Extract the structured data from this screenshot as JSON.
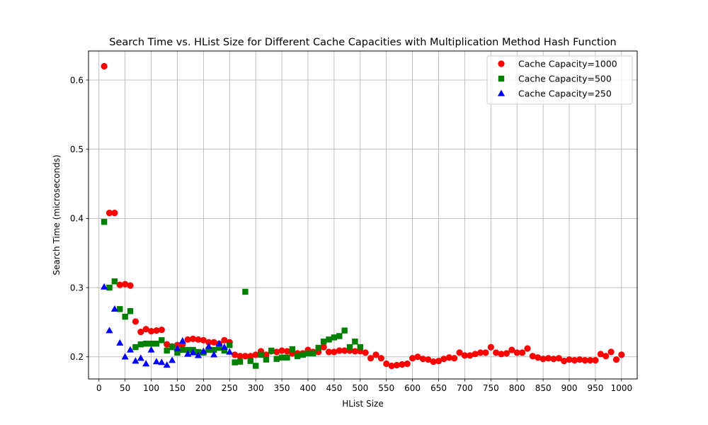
{
  "chart_data": {
    "type": "scatter",
    "title": "Search Time vs. HList Size for Different Cache Capacities with Multiplication Method Hash Function",
    "xlabel": "HList Size",
    "ylabel": "Search Time (microseconds)",
    "xlim": [
      -20,
      1030
    ],
    "ylim": [
      0.168,
      0.642
    ],
    "xticks": [
      0,
      50,
      100,
      150,
      200,
      250,
      300,
      350,
      400,
      450,
      500,
      550,
      600,
      650,
      700,
      750,
      800,
      850,
      900,
      950,
      1000
    ],
    "yticks": [
      0.2,
      0.3,
      0.4,
      0.5,
      0.6
    ],
    "grid": true,
    "legend_position": "top-right",
    "series": [
      {
        "name": "Cache Capacity=1000",
        "color": "#ff0000",
        "marker": "circle",
        "x": [
          10,
          20,
          30,
          40,
          50,
          60,
          70,
          80,
          90,
          100,
          110,
          120,
          130,
          140,
          150,
          160,
          170,
          180,
          190,
          200,
          210,
          220,
          230,
          240,
          250,
          260,
          270,
          280,
          290,
          300,
          310,
          320,
          330,
          340,
          350,
          360,
          370,
          380,
          390,
          400,
          410,
          420,
          430,
          440,
          450,
          460,
          470,
          480,
          490,
          500,
          510,
          520,
          530,
          540,
          550,
          560,
          570,
          580,
          590,
          600,
          610,
          620,
          630,
          640,
          650,
          660,
          670,
          680,
          690,
          700,
          710,
          720,
          730,
          740,
          750,
          760,
          770,
          780,
          790,
          800,
          810,
          820,
          830,
          840,
          850,
          860,
          870,
          880,
          890,
          900,
          910,
          920,
          930,
          940,
          950,
          960,
          970,
          980,
          990,
          1000
        ],
        "y": [
          0.62,
          0.408,
          0.408,
          0.304,
          0.305,
          0.303,
          0.251,
          0.236,
          0.24,
          0.237,
          0.238,
          0.239,
          0.218,
          0.215,
          0.217,
          0.218,
          0.225,
          0.226,
          0.225,
          0.224,
          0.221,
          0.221,
          0.219,
          0.224,
          0.221,
          0.203,
          0.201,
          0.201,
          0.201,
          0.203,
          0.208,
          0.203,
          0.208,
          0.207,
          0.209,
          0.208,
          0.205,
          0.205,
          0.205,
          0.21,
          0.207,
          0.207,
          0.214,
          0.207,
          0.207,
          0.209,
          0.209,
          0.209,
          0.208,
          0.208,
          0.206,
          0.198,
          0.203,
          0.198,
          0.19,
          0.187,
          0.188,
          0.189,
          0.19,
          0.198,
          0.2,
          0.197,
          0.196,
          0.193,
          0.194,
          0.197,
          0.199,
          0.198,
          0.206,
          0.202,
          0.202,
          0.204,
          0.206,
          0.206,
          0.214,
          0.206,
          0.204,
          0.205,
          0.21,
          0.206,
          0.206,
          0.212,
          0.201,
          0.199,
          0.197,
          0.198,
          0.197,
          0.198,
          0.194,
          0.196,
          0.195,
          0.196,
          0.195,
          0.195,
          0.195,
          0.204,
          0.201,
          0.207,
          0.196,
          0.203
        ]
      },
      {
        "name": "Cache Capacity=500",
        "color": "#008000",
        "marker": "square",
        "x": [
          10,
          20,
          30,
          40,
          50,
          60,
          70,
          80,
          90,
          100,
          110,
          120,
          130,
          140,
          150,
          160,
          170,
          180,
          190,
          200,
          210,
          220,
          230,
          240,
          250,
          260,
          270,
          280,
          290,
          300,
          310,
          320,
          330,
          340,
          350,
          360,
          370,
          380,
          390,
          400,
          410,
          420,
          430,
          440,
          450,
          460,
          470,
          480,
          490,
          500
        ],
        "y": [
          0.395,
          0.3,
          0.309,
          0.269,
          0.258,
          0.266,
          0.214,
          0.218,
          0.219,
          0.219,
          0.219,
          0.224,
          0.209,
          0.214,
          0.206,
          0.21,
          0.21,
          0.21,
          0.207,
          0.206,
          0.21,
          0.21,
          0.213,
          0.209,
          0.217,
          0.192,
          0.193,
          0.294,
          0.194,
          0.187,
          0.203,
          0.196,
          0.209,
          0.197,
          0.199,
          0.199,
          0.211,
          0.201,
          0.203,
          0.205,
          0.205,
          0.213,
          0.222,
          0.225,
          0.228,
          0.23,
          0.238,
          0.214,
          0.222,
          0.214
        ]
      },
      {
        "name": "Cache Capacity=250",
        "color": "#0000ff",
        "marker": "triangle",
        "x": [
          10,
          20,
          30,
          40,
          50,
          60,
          70,
          80,
          90,
          100,
          110,
          120,
          130,
          140,
          150,
          160,
          170,
          180,
          190,
          200,
          210,
          220,
          230,
          240,
          250
        ],
        "y": [
          0.301,
          0.238,
          0.269,
          0.22,
          0.2,
          0.21,
          0.194,
          0.198,
          0.19,
          0.21,
          0.193,
          0.192,
          0.188,
          0.195,
          0.212,
          0.223,
          0.204,
          0.206,
          0.202,
          0.208,
          0.215,
          0.203,
          0.219,
          0.214,
          0.207
        ]
      }
    ]
  }
}
